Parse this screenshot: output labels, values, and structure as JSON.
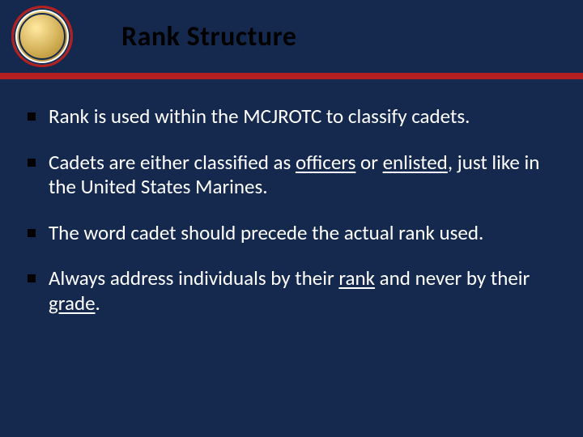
{
  "colors": {
    "header_bg": "#15294f",
    "body_bg": "#15294f",
    "title_band_bg": "#ffffff",
    "red_bar": "#b3201f",
    "thin_line": "#15294f",
    "bullet_square": "#000000",
    "text": "#ffffff",
    "title_text": "#000000"
  },
  "header": {
    "title": "Rank Structure",
    "emblem_alt": "MCJROTC emblem"
  },
  "bullets": [
    {
      "parts": [
        {
          "text": "Rank is used within the MCJROTC to classify cadets."
        }
      ]
    },
    {
      "parts": [
        {
          "text": "Cadets are either classified as "
        },
        {
          "text": "officers",
          "underline": true
        },
        {
          "text": " or "
        },
        {
          "text": "enlisted",
          "underline": true
        },
        {
          "text": ", just like in the United States Marines."
        }
      ]
    },
    {
      "parts": [
        {
          "text": "The word cadet should precede the actual rank used."
        }
      ]
    },
    {
      "parts": [
        {
          "text": "Always address individuals by their "
        },
        {
          "text": "rank",
          "underline": true
        },
        {
          "text": " and never by their "
        },
        {
          "text": "grade",
          "underline": true
        },
        {
          "text": "."
        }
      ]
    }
  ]
}
